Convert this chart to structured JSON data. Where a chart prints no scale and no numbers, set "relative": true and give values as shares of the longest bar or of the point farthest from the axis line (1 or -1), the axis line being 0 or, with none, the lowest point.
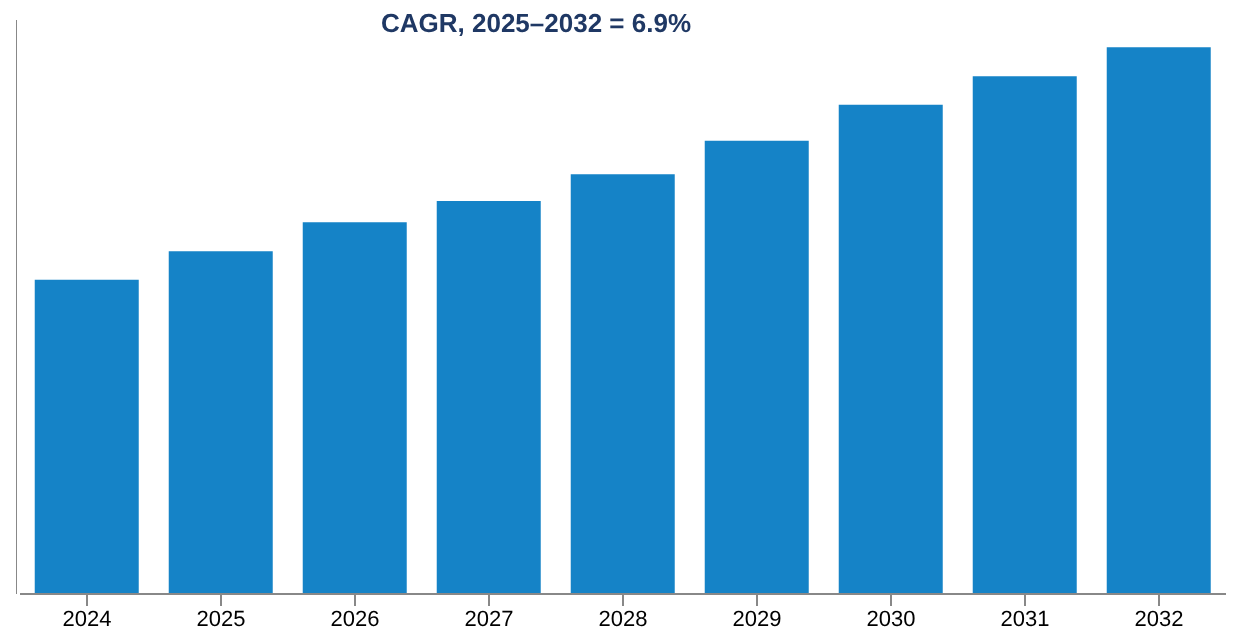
{
  "chart_data": {
    "type": "bar",
    "title": "CAGR, 2025–2032 = 6.9%",
    "relative": true,
    "categories": [
      "2024",
      "2025",
      "2026",
      "2027",
      "2028",
      "2029",
      "2030",
      "2031",
      "2032"
    ],
    "values": [
      0.575,
      0.627,
      0.68,
      0.719,
      0.768,
      0.829,
      0.895,
      0.947,
      1
    ],
    "color": "#1583c7"
  }
}
